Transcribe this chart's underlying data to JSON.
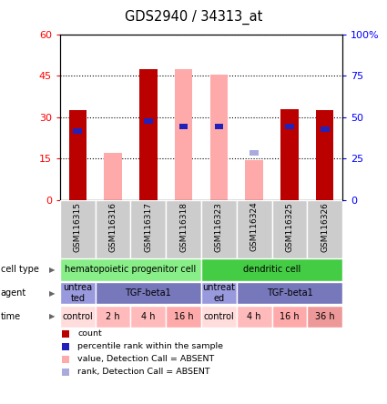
{
  "title": "GDS2940 / 34313_at",
  "samples": [
    "GSM116315",
    "GSM116316",
    "GSM116317",
    "GSM116318",
    "GSM116323",
    "GSM116324",
    "GSM116325",
    "GSM116326"
  ],
  "red_bars": [
    32.5,
    0,
    47.5,
    0,
    0,
    0,
    33,
    32.5
  ],
  "pink_bars": [
    0,
    17,
    0,
    47.5,
    45.5,
    14.5,
    0,
    0
  ],
  "blue_squares_y": [
    25,
    0,
    28.5,
    26.5,
    26.5,
    17,
    26.5,
    25.5
  ],
  "blue_squares_present": [
    true,
    false,
    true,
    true,
    true,
    true,
    true,
    true
  ],
  "blue_sq_color_dark": "#2222bb",
  "blue_sq_color_light": "#aaaadd",
  "blue_sq_absent": [
    false,
    false,
    false,
    false,
    false,
    true,
    false,
    false
  ],
  "ylim_left": [
    0,
    60
  ],
  "ylim_right": [
    0,
    100
  ],
  "yticks_left": [
    0,
    15,
    30,
    45,
    60
  ],
  "yticks_right": [
    0,
    25,
    50,
    75,
    100
  ],
  "ytick_labels_right": [
    "0",
    "25",
    "50",
    "75",
    "100%"
  ],
  "bar_width": 0.5,
  "red_color": "#bb0000",
  "pink_color": "#ffaaaa",
  "light_blue_color": "#aaaadd",
  "cell_type_groups": [
    {
      "label": "hematopoietic progenitor cell",
      "span": [
        0,
        3
      ],
      "color": "#88ee88"
    },
    {
      "label": "dendritic cell",
      "span": [
        4,
        7
      ],
      "color": "#44cc44"
    }
  ],
  "agent_groups": [
    {
      "label": "untrea\nted",
      "span": [
        0,
        0
      ],
      "color": "#9999dd"
    },
    {
      "label": "TGF-beta1",
      "span": [
        1,
        3
      ],
      "color": "#7777bb"
    },
    {
      "label": "untreat\ned",
      "span": [
        4,
        4
      ],
      "color": "#9999dd"
    },
    {
      "label": "TGF-beta1",
      "span": [
        5,
        7
      ],
      "color": "#7777bb"
    }
  ],
  "time_items": [
    "control",
    "2 h",
    "4 h",
    "16 h",
    "control",
    "4 h",
    "16 h",
    "36 h"
  ],
  "time_colors": [
    "#ffdddd",
    "#ffbbbb",
    "#ffbbbb",
    "#ffaaaa",
    "#ffdddd",
    "#ffbbbb",
    "#ffaaaa",
    "#ee9999"
  ],
  "row_labels": [
    "cell type",
    "agent",
    "time"
  ],
  "legend_items": [
    {
      "color": "#bb0000",
      "label": "count"
    },
    {
      "color": "#2222bb",
      "label": "percentile rank within the sample"
    },
    {
      "color": "#ffaaaa",
      "label": "value, Detection Call = ABSENT"
    },
    {
      "color": "#aaaadd",
      "label": "rank, Detection Call = ABSENT"
    }
  ]
}
